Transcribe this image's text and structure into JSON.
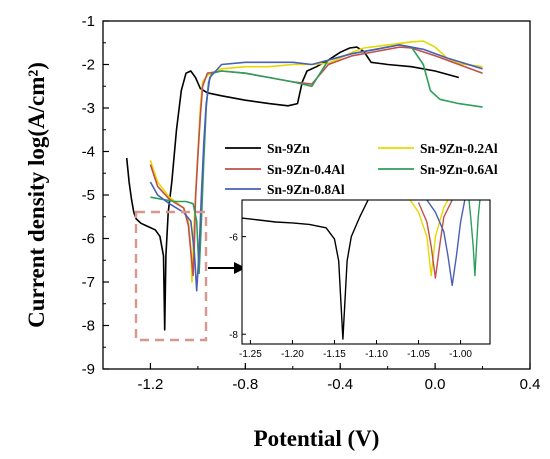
{
  "chart_data": [
    {
      "type": "line",
      "id": "main",
      "xlabel": "Potential (V)",
      "ylabel": "Current density log(A/cm²)",
      "xlim": [
        -1.4,
        0.4
      ],
      "ylim": [
        -9,
        -1
      ],
      "xticks": [
        -1.2,
        -0.8,
        -0.4,
        0.0,
        0.4
      ],
      "xtick_labels": [
        "-1.2",
        "-0.8",
        "-0.4",
        "0.0",
        "0.4"
      ],
      "yticks": [
        -9,
        -8,
        -7,
        -6,
        -5,
        -4,
        -3,
        -2,
        -1
      ],
      "ytick_labels": [
        "-9",
        "-8",
        "-7",
        "-6",
        "-5",
        "-4",
        "-3",
        "-2",
        "-1"
      ],
      "grid": false,
      "legend_position": "center-right",
      "series": [
        {
          "name": "Sn-9Zn",
          "color": "#000000",
          "points": [
            [
              -1.3,
              -4.15
            ],
            [
              -1.29,
              -4.7
            ],
            [
              -1.28,
              -5.1
            ],
            [
              -1.27,
              -5.4
            ],
            [
              -1.26,
              -5.55
            ],
            [
              -1.24,
              -5.65
            ],
            [
              -1.22,
              -5.7
            ],
            [
              -1.2,
              -5.75
            ],
            [
              -1.18,
              -5.8
            ],
            [
              -1.16,
              -5.95
            ],
            [
              -1.145,
              -6.4
            ],
            [
              -1.14,
              -8.1
            ],
            [
              -1.135,
              -6.4
            ],
            [
              -1.125,
              -5.4
            ],
            [
              -1.11,
              -4.7
            ],
            [
              -1.09,
              -3.5
            ],
            [
              -1.07,
              -2.6
            ],
            [
              -1.05,
              -2.2
            ],
            [
              -1.03,
              -2.15
            ],
            [
              -1.01,
              -2.3
            ],
            [
              -0.99,
              -2.55
            ],
            [
              -0.96,
              -2.65
            ],
            [
              -0.9,
              -2.72
            ],
            [
              -0.8,
              -2.82
            ],
            [
              -0.7,
              -2.9
            ],
            [
              -0.62,
              -2.95
            ],
            [
              -0.58,
              -2.9
            ],
            [
              -0.56,
              -2.4
            ],
            [
              -0.54,
              -2.15
            ],
            [
              -0.5,
              -2.05
            ],
            [
              -0.45,
              -1.9
            ],
            [
              -0.4,
              -1.72
            ],
            [
              -0.36,
              -1.62
            ],
            [
              -0.33,
              -1.6
            ],
            [
              -0.3,
              -1.7
            ],
            [
              -0.27,
              -1.95
            ],
            [
              -0.2,
              -2.0
            ],
            [
              -0.1,
              -2.05
            ],
            [
              0.0,
              -2.15
            ],
            [
              0.1,
              -2.3
            ]
          ]
        },
        {
          "name": "Sn-9Zn-0.2Al",
          "color": "#e8d800",
          "points": [
            [
              -1.2,
              -4.2
            ],
            [
              -1.17,
              -4.7
            ],
            [
              -1.12,
              -5.05
            ],
            [
              -1.06,
              -5.3
            ],
            [
              -1.04,
              -5.6
            ],
            [
              -1.03,
              -6.2
            ],
            [
              -1.025,
              -7.0
            ],
            [
              -1.02,
              -6.2
            ],
            [
              -1.01,
              -5.0
            ],
            [
              -1.0,
              -4.0
            ],
            [
              -0.99,
              -3.0
            ],
            [
              -0.98,
              -2.4
            ],
            [
              -0.96,
              -2.25
            ],
            [
              -0.9,
              -2.1
            ],
            [
              -0.8,
              -2.05
            ],
            [
              -0.7,
              -2.05
            ],
            [
              -0.6,
              -2.0
            ],
            [
              -0.52,
              -2.0
            ],
            [
              -0.45,
              -1.97
            ],
            [
              -0.4,
              -1.85
            ],
            [
              -0.35,
              -1.72
            ],
            [
              -0.3,
              -1.62
            ],
            [
              -0.2,
              -1.55
            ],
            [
              -0.1,
              -1.48
            ],
            [
              -0.05,
              -1.46
            ],
            [
              0.0,
              -1.6
            ],
            [
              0.05,
              -1.85
            ],
            [
              0.1,
              -1.98
            ],
            [
              0.2,
              -2.05
            ]
          ]
        },
        {
          "name": "Sn-9Zn-0.4Al",
          "color": "#c0504d",
          "points": [
            [
              -1.2,
              -4.3
            ],
            [
              -1.17,
              -4.8
            ],
            [
              -1.12,
              -5.1
            ],
            [
              -1.06,
              -5.3
            ],
            [
              -1.04,
              -5.7
            ],
            [
              -1.03,
              -6.3
            ],
            [
              -1.02,
              -6.85
            ],
            [
              -1.015,
              -6.2
            ],
            [
              -1.01,
              -5.1
            ],
            [
              -1.0,
              -4.1
            ],
            [
              -0.99,
              -3.2
            ],
            [
              -0.98,
              -2.5
            ],
            [
              -0.96,
              -2.2
            ],
            [
              -0.9,
              -2.15
            ],
            [
              -0.8,
              -2.2
            ],
            [
              -0.7,
              -2.3
            ],
            [
              -0.6,
              -2.4
            ],
            [
              -0.52,
              -2.45
            ],
            [
              -0.45,
              -2.0
            ],
            [
              -0.35,
              -1.8
            ],
            [
              -0.25,
              -1.7
            ],
            [
              -0.15,
              -1.6
            ],
            [
              -0.1,
              -1.62
            ],
            [
              0.0,
              -1.8
            ],
            [
              0.1,
              -2.0
            ],
            [
              0.2,
              -2.2
            ]
          ]
        },
        {
          "name": "Sn-9Zn-0.6Al",
          "color": "#2e9e5b",
          "points": [
            [
              -1.2,
              -5.05
            ],
            [
              -1.15,
              -5.1
            ],
            [
              -1.1,
              -5.15
            ],
            [
              -1.05,
              -5.15
            ],
            [
              -1.02,
              -5.2
            ],
            [
              -1.005,
              -5.6
            ],
            [
              -0.995,
              -6.8
            ],
            [
              -0.985,
              -5.6
            ],
            [
              -0.975,
              -4.2
            ],
            [
              -0.965,
              -3.0
            ],
            [
              -0.955,
              -2.4
            ],
            [
              -0.94,
              -2.2
            ],
            [
              -0.9,
              -2.15
            ],
            [
              -0.8,
              -2.2
            ],
            [
              -0.7,
              -2.3
            ],
            [
              -0.6,
              -2.4
            ],
            [
              -0.52,
              -2.5
            ],
            [
              -0.45,
              -1.9
            ],
            [
              -0.35,
              -1.75
            ],
            [
              -0.25,
              -1.65
            ],
            [
              -0.15,
              -1.55
            ],
            [
              -0.1,
              -1.6
            ],
            [
              -0.05,
              -2.0
            ],
            [
              -0.02,
              -2.6
            ],
            [
              0.02,
              -2.8
            ],
            [
              0.1,
              -2.9
            ],
            [
              0.2,
              -2.98
            ]
          ]
        },
        {
          "name": "Sn-9Zn-0.8Al",
          "color": "#4a5fb5",
          "points": [
            [
              -1.2,
              -4.7
            ],
            [
              -1.17,
              -5.0
            ],
            [
              -1.12,
              -5.2
            ],
            [
              -1.06,
              -5.4
            ],
            [
              -1.03,
              -5.6
            ],
            [
              -1.015,
              -6.3
            ],
            [
              -1.005,
              -7.2
            ],
            [
              -0.995,
              -6.3
            ],
            [
              -0.985,
              -5.0
            ],
            [
              -0.975,
              -3.8
            ],
            [
              -0.965,
              -2.9
            ],
            [
              -0.95,
              -2.3
            ],
            [
              -0.9,
              -2.0
            ],
            [
              -0.8,
              -1.95
            ],
            [
              -0.7,
              -1.95
            ],
            [
              -0.6,
              -1.95
            ],
            [
              -0.52,
              -2.0
            ],
            [
              -0.45,
              -1.9
            ],
            [
              -0.35,
              -1.75
            ],
            [
              -0.25,
              -1.65
            ],
            [
              -0.15,
              -1.55
            ],
            [
              -0.05,
              -1.65
            ],
            [
              0.05,
              -1.85
            ],
            [
              0.2,
              -2.1
            ]
          ]
        }
      ]
    },
    {
      "type": "line",
      "id": "inset",
      "xlim": [
        -1.26,
        -0.965
      ],
      "ylim": [
        -8.2,
        -5.25
      ],
      "xticks": [
        -1.25,
        -1.2,
        -1.15,
        -1.1,
        -1.05,
        -1.0
      ],
      "xtick_labels": [
        "-1.25",
        "-1.20",
        "-1.15",
        "-1.10",
        "-1.05",
        "-1.00"
      ],
      "yticks": [
        -8,
        -6
      ],
      "ytick_labels": [
        "-8",
        "-6"
      ],
      "series": [
        {
          "ref": "Sn-9Zn",
          "color": "#000000",
          "points": [
            [
              -1.26,
              -5.62
            ],
            [
              -1.24,
              -5.66
            ],
            [
              -1.22,
              -5.7
            ],
            [
              -1.2,
              -5.72
            ],
            [
              -1.18,
              -5.75
            ],
            [
              -1.16,
              -5.82
            ],
            [
              -1.15,
              -6.05
            ],
            [
              -1.145,
              -6.5
            ],
            [
              -1.14,
              -8.1
            ],
            [
              -1.135,
              -6.5
            ],
            [
              -1.13,
              -6.0
            ],
            [
              -1.12,
              -5.6
            ],
            [
              -1.11,
              -5.25
            ]
          ]
        },
        {
          "ref": "Sn-9Zn-0.2Al",
          "color": "#e8d800",
          "points": [
            [
              -1.06,
              -5.25
            ],
            [
              -1.05,
              -5.5
            ],
            [
              -1.04,
              -6.0
            ],
            [
              -1.035,
              -6.8
            ],
            [
              -1.03,
              -6.0
            ],
            [
              -1.02,
              -5.4
            ],
            [
              -1.015,
              -5.25
            ]
          ]
        },
        {
          "ref": "Sn-9Zn-0.4Al",
          "color": "#c0504d",
          "points": [
            [
              -1.05,
              -5.3
            ],
            [
              -1.04,
              -5.7
            ],
            [
              -1.035,
              -6.2
            ],
            [
              -1.03,
              -6.85
            ],
            [
              -1.025,
              -6.2
            ],
            [
              -1.02,
              -5.6
            ],
            [
              -1.01,
              -5.25
            ]
          ]
        },
        {
          "ref": "Sn-9Zn-0.6Al",
          "color": "#2e9e5b",
          "points": [
            [
              -0.99,
              -5.25
            ],
            [
              -0.988,
              -5.6
            ],
            [
              -0.985,
              -6.2
            ],
            [
              -0.983,
              -6.8
            ],
            [
              -0.981,
              -6.2
            ],
            [
              -0.979,
              -5.6
            ],
            [
              -0.977,
              -5.25
            ]
          ]
        },
        {
          "ref": "Sn-9Zn-0.8Al",
          "color": "#4a5fb5",
          "points": [
            [
              -1.04,
              -5.25
            ],
            [
              -1.03,
              -5.5
            ],
            [
              -1.02,
              -5.9
            ],
            [
              -1.015,
              -6.4
            ],
            [
              -1.01,
              -7.0
            ],
            [
              -1.005,
              -6.4
            ],
            [
              -1.0,
              -5.7
            ],
            [
              -0.995,
              -5.25
            ]
          ]
        }
      ]
    }
  ],
  "annotation": {
    "highlight_box_color": "#d9968a",
    "arrow_color": "#000000"
  }
}
